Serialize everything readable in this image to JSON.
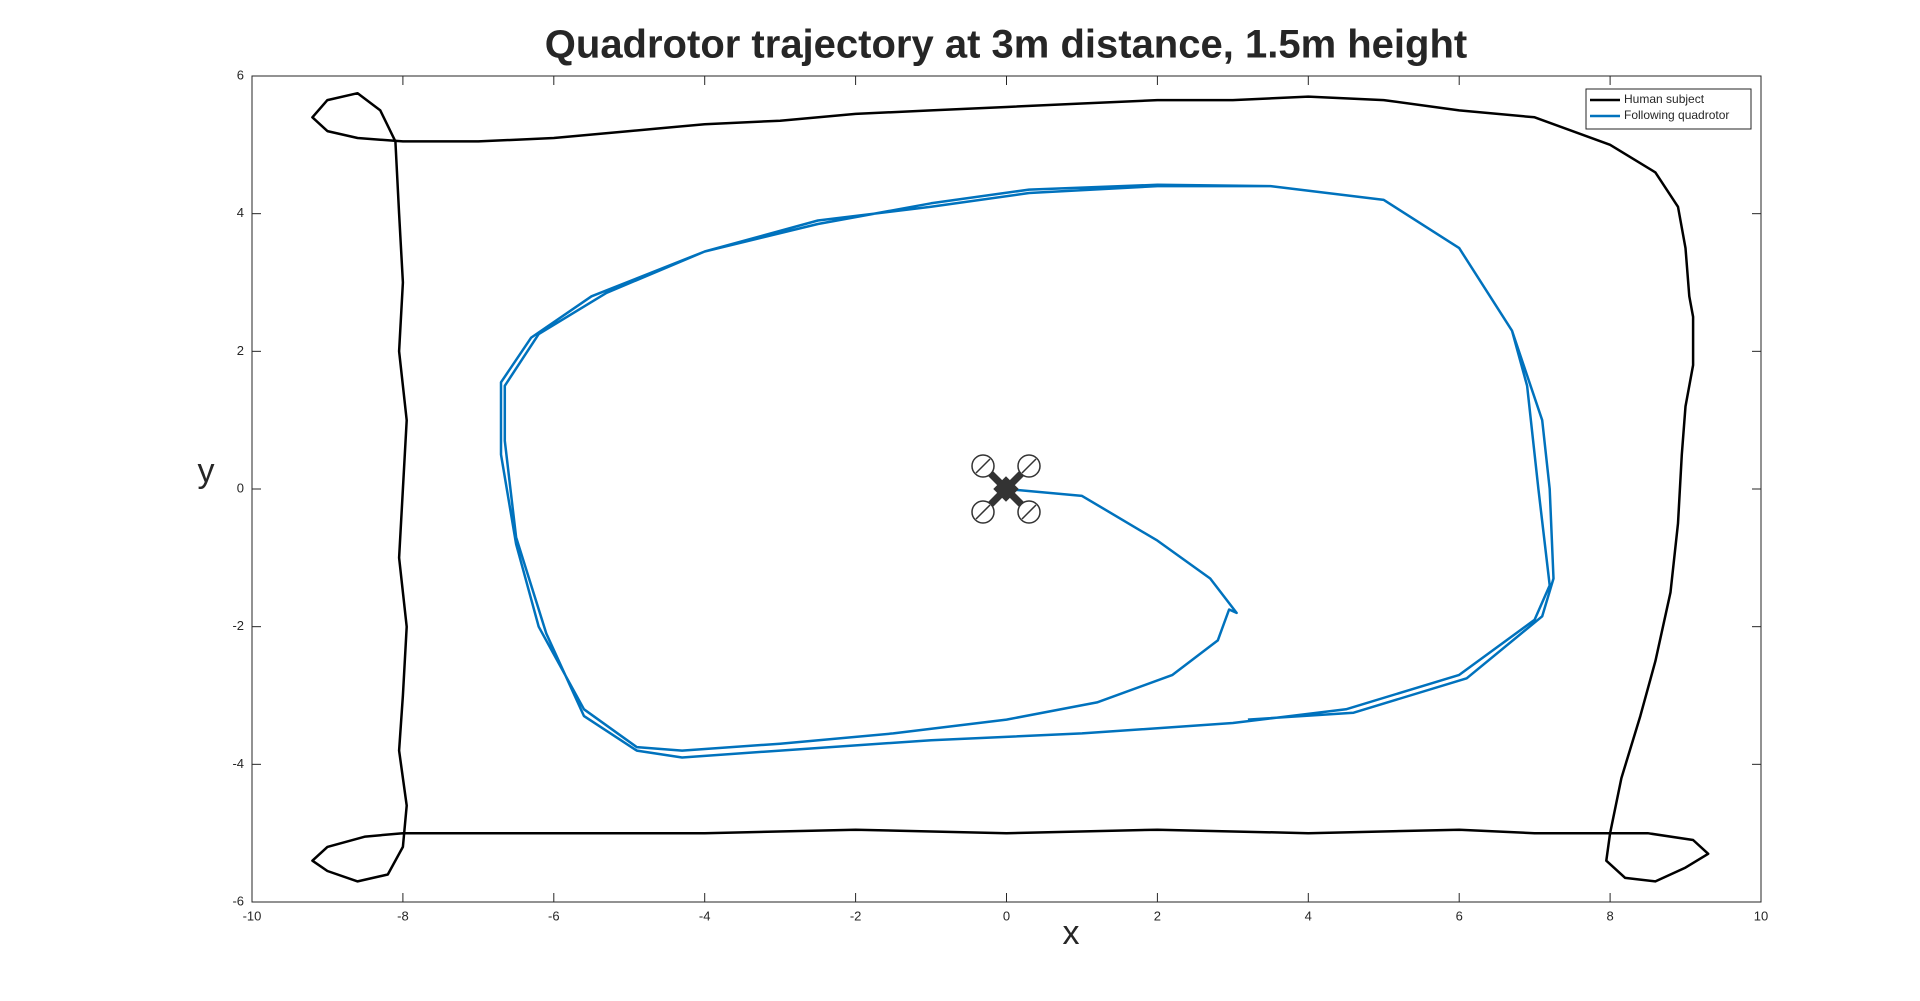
{
  "chart_data": {
    "type": "line",
    "title": "Quadrotor trajectory at 3m distance, 1.5m height",
    "x_label": "x",
    "y_label": "y",
    "xlim": [
      -10,
      10
    ],
    "ylim": [
      -6,
      6
    ],
    "xticks": [
      -10,
      -8,
      -6,
      -4,
      -2,
      0,
      2,
      4,
      6,
      8,
      10
    ],
    "yticks": [
      -6,
      -4,
      -2,
      0,
      2,
      4,
      6
    ],
    "grid": false,
    "legend": "upper right",
    "series": [
      {
        "name": "Human subject",
        "color": "#000000",
        "x": [
          -8,
          -7.95,
          -8.05,
          -8,
          -7.95,
          -8.05,
          -8,
          -7.95,
          -8.05,
          -8,
          -8.05,
          -8.1,
          -8.3,
          -8.6,
          -9.0,
          -9.2,
          -9.0,
          -8.6,
          -8,
          -7,
          -6,
          -5,
          -4,
          -3,
          -2,
          -1,
          0,
          1,
          2,
          3,
          4,
          5,
          6,
          7,
          8,
          8.6,
          8.9,
          9.0,
          9.05,
          9.1,
          9.1,
          9.0,
          8.95,
          8.9,
          8.8,
          8.6,
          8.4,
          8.15,
          8.0,
          7.95,
          8.2,
          8.6,
          9.0,
          9.3,
          9.1,
          8.5,
          8.0,
          7,
          6,
          4,
          2,
          0,
          -2,
          -4,
          -6,
          -7,
          -8,
          -8.5,
          -9.0,
          -9.2,
          -9.0,
          -8.6,
          -8.2,
          -8,
          -7.95
        ],
        "values": [
          -5.2,
          -4.6,
          -3.8,
          -3,
          -2,
          -1,
          0,
          1,
          2,
          3,
          4,
          5.05,
          5.5,
          5.75,
          5.65,
          5.4,
          5.2,
          5.1,
          5.05,
          5.05,
          5.1,
          5.2,
          5.3,
          5.35,
          5.45,
          5.5,
          5.55,
          5.6,
          5.65,
          5.65,
          5.7,
          5.65,
          5.5,
          5.4,
          5.0,
          4.6,
          4.1,
          3.5,
          2.8,
          2.5,
          1.8,
          1.2,
          0.5,
          -0.5,
          -1.5,
          -2.5,
          -3.3,
          -4.2,
          -5.0,
          -5.4,
          -5.65,
          -5.7,
          -5.5,
          -5.3,
          -5.1,
          -5.0,
          -5.0,
          -5.0,
          -4.95,
          -5.0,
          -4.95,
          -5.0,
          -4.95,
          -5.0,
          -5.0,
          -5.0,
          -5.0,
          -5.05,
          -5.2,
          -5.4,
          -5.55,
          -5.7,
          -5.6,
          -5.2,
          -4.6
        ]
      },
      {
        "name": "Following quadrotor",
        "color": "#0072bd",
        "x": [
          0,
          1,
          2,
          2.7,
          3.05,
          2.95,
          2.8,
          2.2,
          1.2,
          0,
          -1.5,
          -3,
          -4.3,
          -4.9,
          -5.6,
          -6.2,
          -6.5,
          -6.7,
          -6.7,
          -6.3,
          -5.5,
          -4,
          -2.5,
          -1,
          0.3,
          2,
          3.5,
          5,
          6,
          6.7,
          6.9,
          7.05,
          7.2,
          7.0,
          6.0,
          4.5,
          3,
          1,
          -1,
          -3,
          -4.3,
          -4.9,
          -5.6,
          -6.1,
          -6.5,
          -6.65,
          -6.65,
          -6.2,
          -5.3,
          -4,
          -2.5,
          -1,
          0.3,
          2,
          3.5,
          5,
          6,
          6.7,
          7.1,
          7.2,
          7.25,
          7.1,
          6.1,
          4.6,
          3.2
        ],
        "values": [
          0,
          -0.1,
          -0.75,
          -1.3,
          -1.8,
          -1.75,
          -2.2,
          -2.7,
          -3.1,
          -3.35,
          -3.55,
          -3.7,
          -3.8,
          -3.75,
          -3.2,
          -2.0,
          -0.8,
          0.5,
          1.55,
          2.2,
          2.8,
          3.45,
          3.85,
          4.15,
          4.35,
          4.42,
          4.4,
          4.2,
          3.5,
          2.3,
          1.5,
          0,
          -1.4,
          -1.9,
          -2.7,
          -3.2,
          -3.4,
          -3.55,
          -3.65,
          -3.8,
          -3.9,
          -3.8,
          -3.3,
          -2.1,
          -0.7,
          0.7,
          1.5,
          2.25,
          2.85,
          3.45,
          3.9,
          4.1,
          4.3,
          4.4,
          4.4,
          4.2,
          3.5,
          2.3,
          1.0,
          0,
          -1.3,
          -1.85,
          -2.75,
          -3.25,
          -3.35
        ]
      }
    ]
  }
}
